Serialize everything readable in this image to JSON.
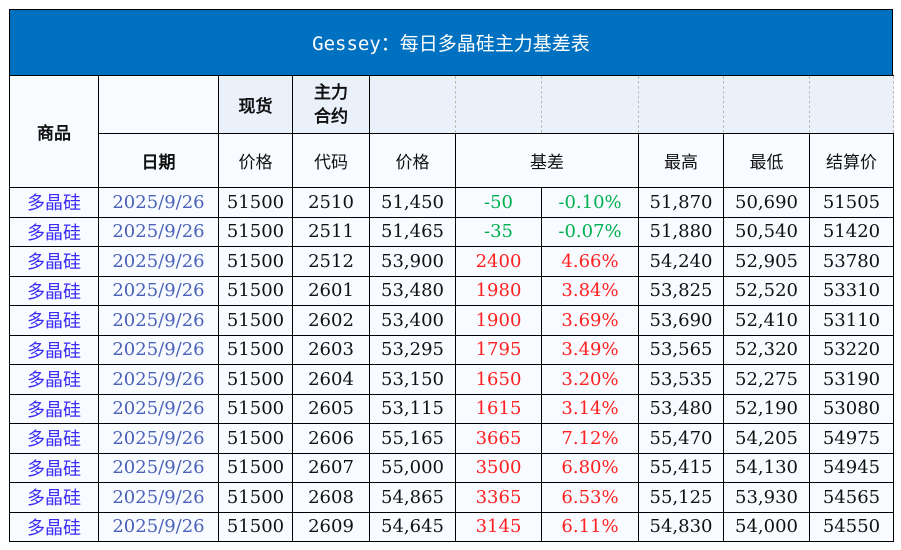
{
  "title": "Gessey：每日多晶硅主力基差表",
  "header": {
    "product": "商品",
    "spot": "现货",
    "main_contract": "主力合约",
    "date": "日期",
    "spot_price": "价格",
    "code": "代码",
    "price": "价格",
    "basis": "基差",
    "high": "最高",
    "low": "最低",
    "settle": "结算价"
  },
  "colors": {
    "title_bg": "#0070c0",
    "positive": "#ff2020",
    "negative": "#00b050",
    "product": "#3a2cf5",
    "date": "#4b62b8"
  },
  "rows": [
    {
      "product": "多晶硅",
      "date": "2025/9/26",
      "spot": "51500",
      "code": "2510",
      "price": "51,450",
      "basis": "-50",
      "pct": "-0.10%",
      "high": "51,870",
      "low": "50,690",
      "settle": "51505",
      "sign": "neg"
    },
    {
      "product": "多晶硅",
      "date": "2025/9/26",
      "spot": "51500",
      "code": "2511",
      "price": "51,465",
      "basis": "-35",
      "pct": "-0.07%",
      "high": "51,880",
      "low": "50,540",
      "settle": "51420",
      "sign": "neg"
    },
    {
      "product": "多晶硅",
      "date": "2025/9/26",
      "spot": "51500",
      "code": "2512",
      "price": "53,900",
      "basis": "2400",
      "pct": "4.66%",
      "high": "54,240",
      "low": "52,905",
      "settle": "53780",
      "sign": "pos"
    },
    {
      "product": "多晶硅",
      "date": "2025/9/26",
      "spot": "51500",
      "code": "2601",
      "price": "53,480",
      "basis": "1980",
      "pct": "3.84%",
      "high": "53,825",
      "low": "52,520",
      "settle": "53310",
      "sign": "pos"
    },
    {
      "product": "多晶硅",
      "date": "2025/9/26",
      "spot": "51500",
      "code": "2602",
      "price": "53,400",
      "basis": "1900",
      "pct": "3.69%",
      "high": "53,690",
      "low": "52,410",
      "settle": "53110",
      "sign": "pos"
    },
    {
      "product": "多晶硅",
      "date": "2025/9/26",
      "spot": "51500",
      "code": "2603",
      "price": "53,295",
      "basis": "1795",
      "pct": "3.49%",
      "high": "53,565",
      "low": "52,320",
      "settle": "53220",
      "sign": "pos"
    },
    {
      "product": "多晶硅",
      "date": "2025/9/26",
      "spot": "51500",
      "code": "2604",
      "price": "53,150",
      "basis": "1650",
      "pct": "3.20%",
      "high": "53,535",
      "low": "52,275",
      "settle": "53190",
      "sign": "pos"
    },
    {
      "product": "多晶硅",
      "date": "2025/9/26",
      "spot": "51500",
      "code": "2605",
      "price": "53,115",
      "basis": "1615",
      "pct": "3.14%",
      "high": "53,480",
      "low": "52,190",
      "settle": "53080",
      "sign": "pos"
    },
    {
      "product": "多晶硅",
      "date": "2025/9/26",
      "spot": "51500",
      "code": "2606",
      "price": "55,165",
      "basis": "3665",
      "pct": "7.12%",
      "high": "55,470",
      "low": "54,205",
      "settle": "54975",
      "sign": "pos"
    },
    {
      "product": "多晶硅",
      "date": "2025/9/26",
      "spot": "51500",
      "code": "2607",
      "price": "55,000",
      "basis": "3500",
      "pct": "6.80%",
      "high": "55,415",
      "low": "54,130",
      "settle": "54945",
      "sign": "pos"
    },
    {
      "product": "多晶硅",
      "date": "2025/9/26",
      "spot": "51500",
      "code": "2608",
      "price": "54,865",
      "basis": "3365",
      "pct": "6.53%",
      "high": "55,125",
      "low": "53,930",
      "settle": "54565",
      "sign": "pos"
    },
    {
      "product": "多晶硅",
      "date": "2025/9/26",
      "spot": "51500",
      "code": "2609",
      "price": "54,645",
      "basis": "3145",
      "pct": "6.11%",
      "high": "54,830",
      "low": "54,000",
      "settle": "54550",
      "sign": "pos"
    }
  ]
}
